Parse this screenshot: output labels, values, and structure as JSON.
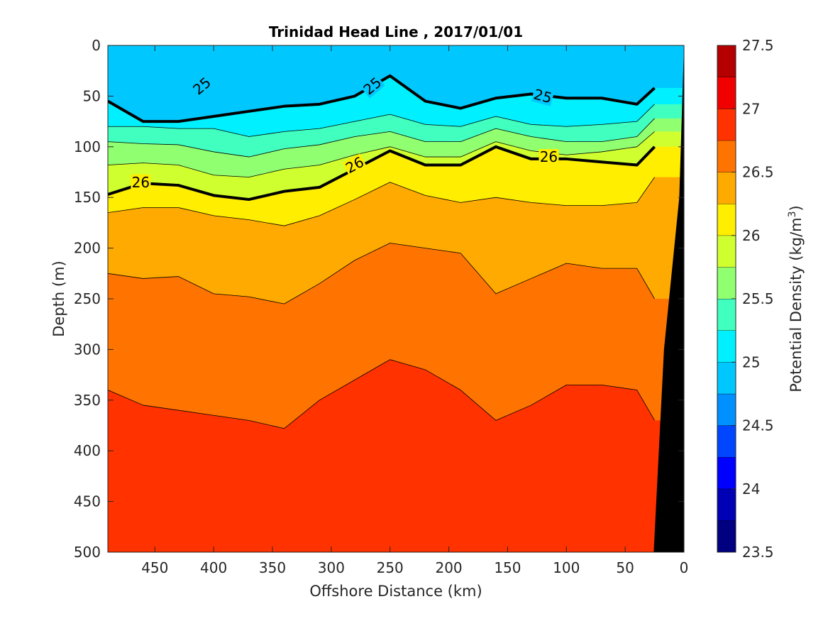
{
  "chart_data": {
    "type": "heatmap",
    "title": "Trinidad Head Line , 2017/01/01",
    "xlabel": "Offshore Distance (km)",
    "ylabel": "Depth (m)",
    "xlim": [
      490,
      0
    ],
    "ylim": [
      0,
      500
    ],
    "x_reversed": true,
    "y_reversed": true,
    "x_ticks": [
      450,
      400,
      350,
      300,
      250,
      200,
      150,
      100,
      50,
      0
    ],
    "y_ticks": [
      0,
      50,
      100,
      150,
      200,
      250,
      300,
      350,
      400,
      450,
      500
    ],
    "colorbar": {
      "label_main": "Potential Density (kg/m",
      "label_sup": "3",
      "label_end": ")",
      "ticks": [
        23.5,
        24,
        24.5,
        25,
        25.5,
        26,
        26.5,
        27,
        27.5
      ],
      "levels": [
        23.5,
        23.75,
        24.0,
        24.25,
        24.5,
        24.75,
        25.0,
        25.25,
        25.5,
        25.75,
        26.0,
        26.25,
        26.5,
        26.75,
        27.0,
        27.25,
        27.5
      ],
      "colors": [
        "#000080",
        "#0000b4",
        "#0000ff",
        "#0046ff",
        "#0090ff",
        "#00c8ff",
        "#00f0ff",
        "#40ffbf",
        "#90ff70",
        "#d0ff2f",
        "#ffee00",
        "#ffaa00",
        "#ff7400",
        "#ff3200",
        "#f00000",
        "#b40000"
      ]
    },
    "contour_x": [
      490,
      460,
      430,
      400,
      370,
      340,
      310,
      280,
      250,
      220,
      190,
      160,
      130,
      100,
      70,
      40,
      25
    ],
    "contours": [
      {
        "level": 25.0,
        "depths": [
          55,
          75,
          75,
          70,
          65,
          60,
          58,
          50,
          30,
          55,
          62,
          52,
          48,
          52,
          52,
          58,
          42
        ]
      },
      {
        "level": 25.25,
        "depths": [
          80,
          80,
          82,
          82,
          90,
          85,
          82,
          75,
          68,
          78,
          80,
          70,
          78,
          80,
          78,
          75,
          58
        ]
      },
      {
        "level": 25.5,
        "depths": [
          95,
          97,
          98,
          105,
          110,
          102,
          98,
          90,
          85,
          95,
          95,
          82,
          90,
          95,
          95,
          90,
          72
        ]
      },
      {
        "level": 25.75,
        "depths": [
          118,
          116,
          118,
          128,
          130,
          122,
          118,
          108,
          100,
          110,
          110,
          95,
          104,
          108,
          105,
          100,
          85
        ]
      },
      {
        "level": 26.0,
        "depths": [
          147,
          136,
          138,
          148,
          152,
          144,
          140,
          122,
          104,
          118,
          118,
          100,
          112,
          112,
          115,
          118,
          100
        ]
      },
      {
        "level": 26.25,
        "depths": [
          165,
          160,
          160,
          168,
          172,
          178,
          168,
          152,
          135,
          148,
          155,
          150,
          155,
          158,
          158,
          155,
          130
        ]
      },
      {
        "level": 26.5,
        "depths": [
          225,
          230,
          228,
          245,
          248,
          255,
          235,
          212,
          195,
          200,
          205,
          245,
          230,
          215,
          220,
          220,
          250
        ]
      },
      {
        "level": 26.75,
        "depths": [
          340,
          355,
          360,
          365,
          370,
          378,
          350,
          330,
          310,
          320,
          340,
          370,
          355,
          335,
          335,
          340,
          370
        ]
      }
    ],
    "contour_labels": [
      {
        "text": "25",
        "x": 410,
        "depth": 40,
        "angle": -40
      },
      {
        "text": "25",
        "x": 265,
        "depth": 40,
        "angle": -40
      },
      {
        "text": "25",
        "x": 120,
        "depth": 50,
        "angle": 15
      },
      {
        "text": "26",
        "x": 462,
        "depth": 135,
        "angle": 0
      },
      {
        "text": "26",
        "x": 280,
        "depth": 118,
        "angle": -28
      },
      {
        "text": "26",
        "x": 115,
        "depth": 110,
        "angle": 0
      }
    ],
    "seafloor_label": "land mass (black)"
  }
}
